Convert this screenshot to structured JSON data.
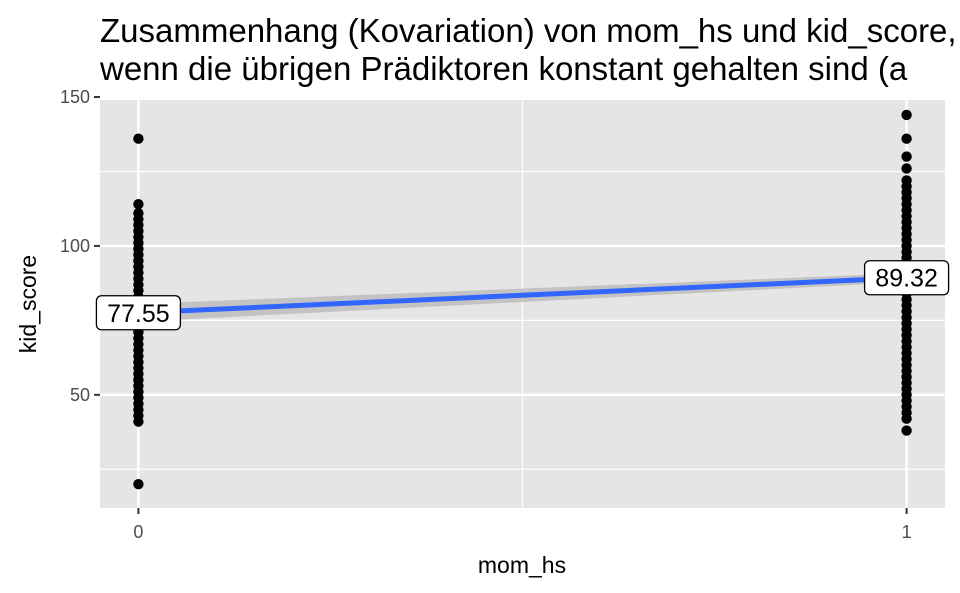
{
  "title_lines": [
    "Zusammenhang (Kovariation) von mom_hs und kid_score,",
    "wenn die übrigen Prädiktoren konstant gehalten sind (a"
  ],
  "chart_data": {
    "type": "scatter",
    "xlabel": "mom_hs",
    "ylabel": "kid_score",
    "x_ticks": [
      0,
      1
    ],
    "y_ticks": [
      50,
      100,
      150
    ],
    "xlim": [
      -0.05,
      1.05
    ],
    "ylim": [
      12,
      149
    ],
    "grid": true,
    "colors": {
      "panel": "#e5e5e5",
      "grid": "#ffffff",
      "points": "#000000",
      "line": "#3366ff",
      "ribbon": "#bdbdbd"
    },
    "groups": [
      {
        "x": 0,
        "y": [
          136,
          114,
          111,
          109,
          107,
          105,
          103,
          101,
          99,
          97,
          95,
          93,
          91,
          89,
          87,
          85,
          83,
          81,
          79,
          77,
          75,
          73,
          71,
          69,
          67,
          65,
          63,
          61,
          59,
          57,
          55,
          53,
          51,
          49,
          47,
          45,
          43,
          41,
          20
        ]
      },
      {
        "x": 1,
        "y": [
          144,
          136,
          130,
          126,
          122,
          120,
          118,
          116,
          114,
          112,
          110,
          108,
          106,
          104,
          102,
          100,
          98,
          96,
          94,
          92,
          90,
          88,
          86,
          84,
          82,
          80,
          78,
          76,
          74,
          72,
          70,
          68,
          66,
          64,
          62,
          60,
          58,
          56,
          54,
          52,
          50,
          48,
          46,
          44,
          42,
          38
        ]
      }
    ],
    "regression": {
      "x": [
        0,
        1
      ],
      "y": [
        77.55,
        89.32
      ],
      "ci_halfwidth": [
        3,
        1.5
      ]
    },
    "data_labels": [
      {
        "x": 0,
        "y": 77.55,
        "text": "77.55"
      },
      {
        "x": 1,
        "y": 89.32,
        "text": "89.32"
      }
    ]
  }
}
